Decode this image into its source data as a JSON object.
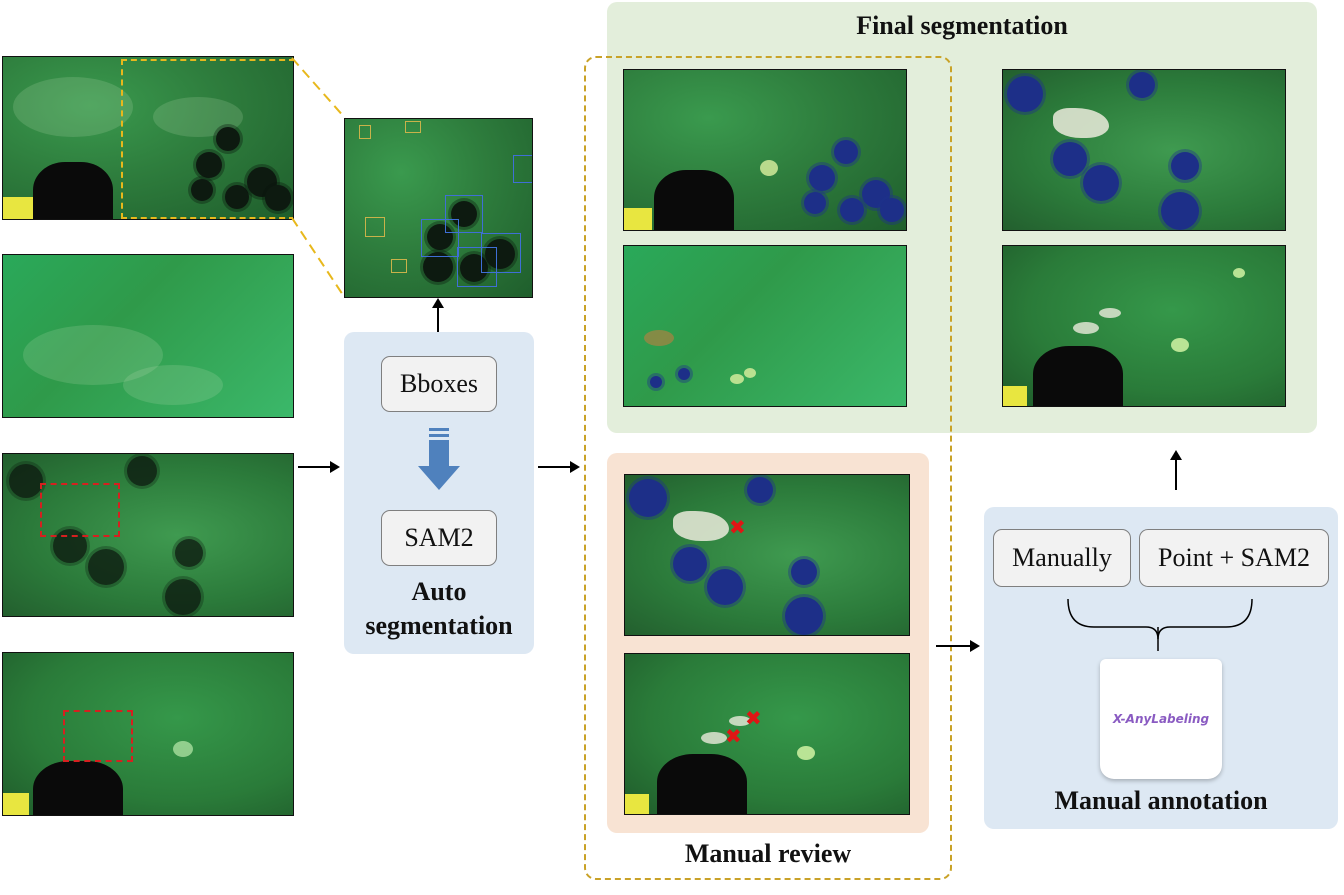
{
  "title_final": "Final segmentation",
  "auto": {
    "step1_label": "Bboxes",
    "step2_label": "SAM2",
    "title_line1": "Auto",
    "title_line2": "segmentation"
  },
  "manual_review": {
    "title": "Manual review"
  },
  "manual_annotation": {
    "option1_label": "Manually",
    "option2_label": "Point + SAM2",
    "tool_label": "X-AnyLabeling",
    "title": "Manual annotation"
  },
  "colors": {
    "auto_panel": "#dde8f3",
    "final_panel": "#e3eedb",
    "review_panel": "#f8e3d3",
    "review_outline": "#c9a227",
    "zoom_box": "#e8b81c",
    "error_box": "#d62020",
    "down_arrow": "#4f81bd"
  },
  "icons": [
    "down-arrow-icon",
    "error-x-icon",
    "right-arrow-icon",
    "up-arrow-icon",
    "brace-icon"
  ]
}
